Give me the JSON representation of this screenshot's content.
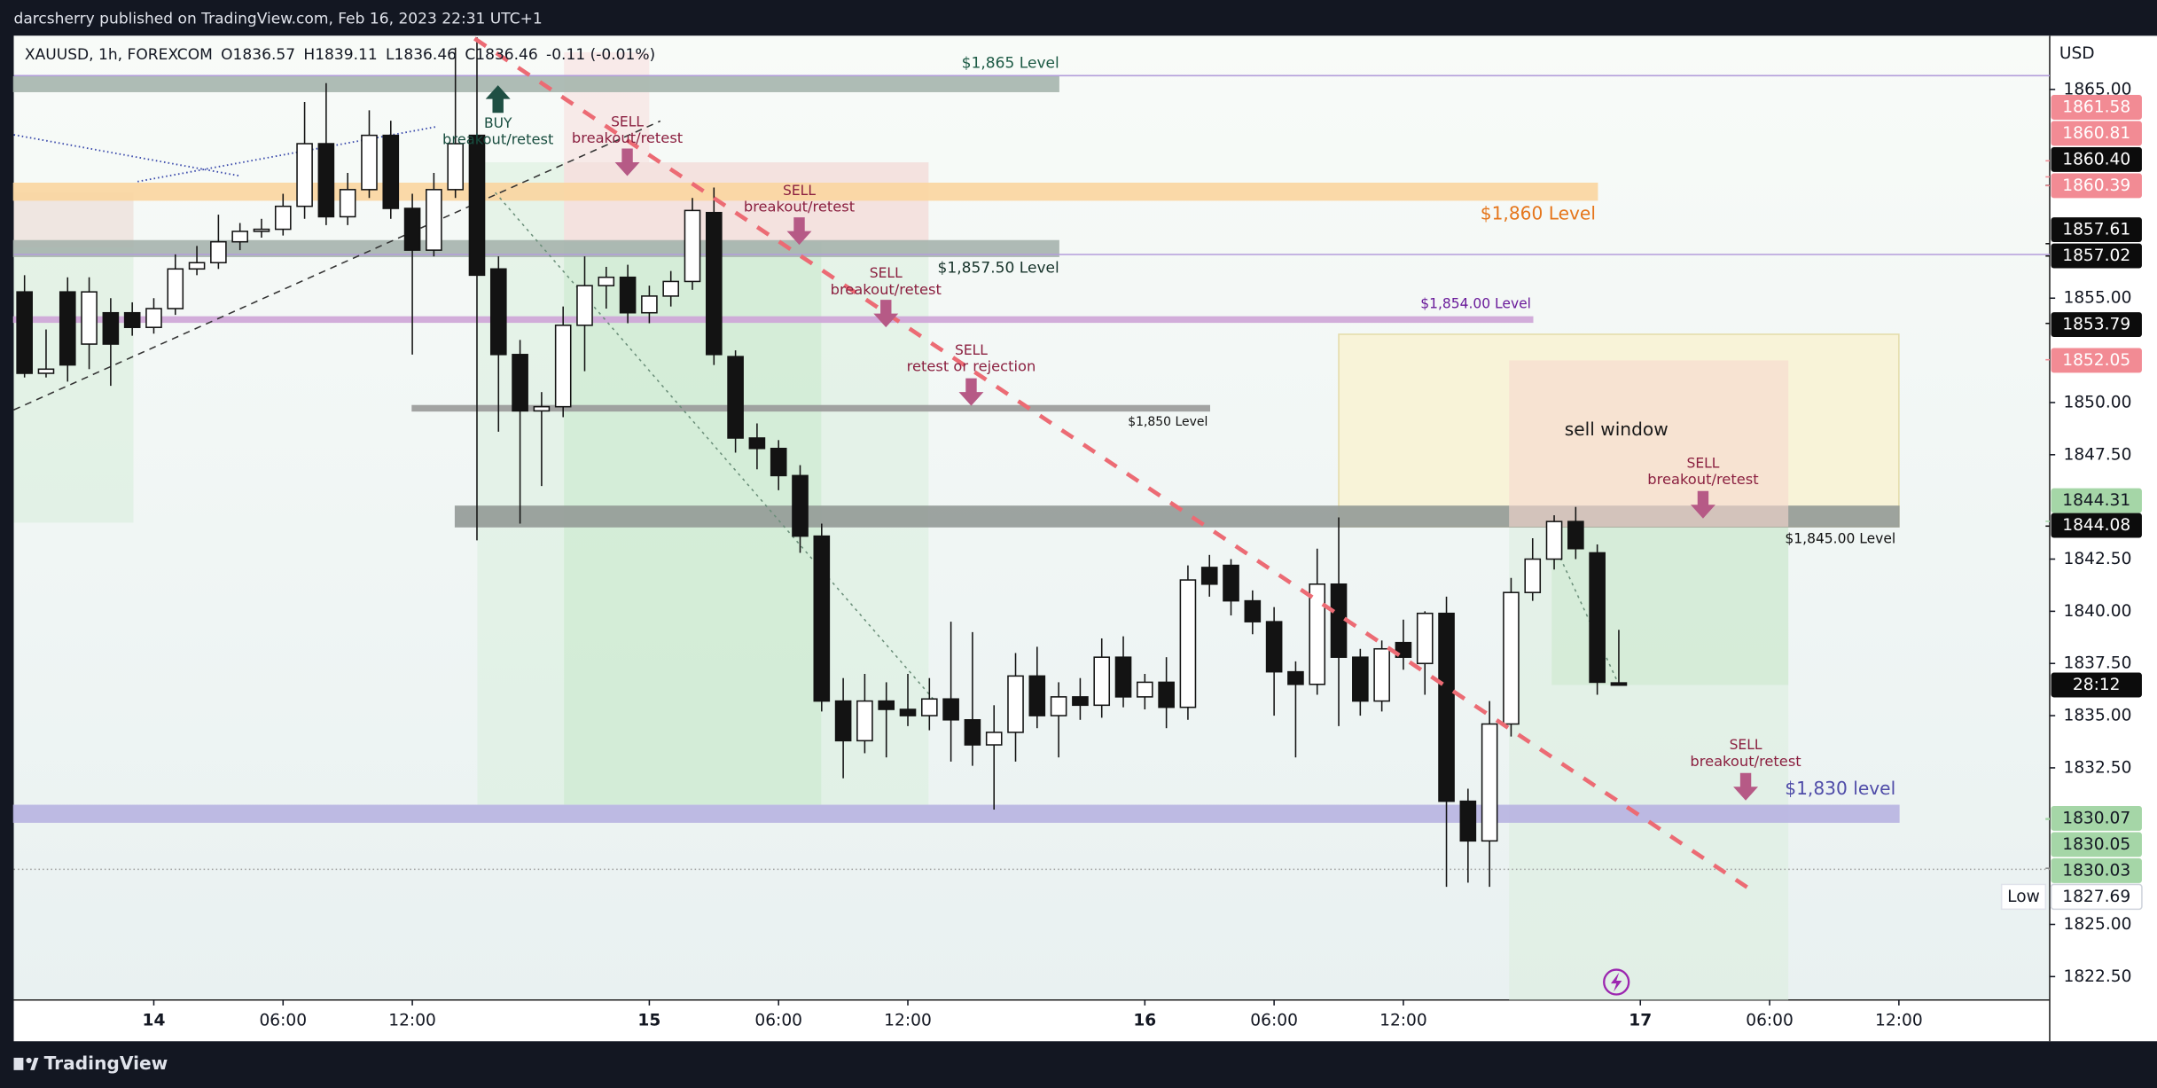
{
  "topbar": "darcsherry published on TradingView.com, Feb 16, 2023 22:31 UTC+1",
  "chart_data": {
    "type": "candlestick",
    "legend": [
      "XAUUSD, 1h, FOREXCOM",
      "O1836.57",
      "H1839.11",
      "L1836.46",
      "C1836.46",
      "-0.11 (-0.01%)"
    ],
    "currency": "USD",
    "open": [
      1855.3,
      1851.4,
      1855.3,
      1852.8,
      1854.3,
      1854.3,
      1853.6,
      1854.5,
      1856.4,
      1856.7,
      1857.7,
      1858.2,
      1858.3,
      1859.4,
      1862.4,
      1858.9,
      1860.2,
      1862.8,
      1859.3,
      1857.3,
      1860.2,
      1862.8,
      1856.4,
      1852.3,
      1849.6,
      1849.8,
      1853.7,
      1855.6,
      1856.0,
      1854.3,
      1855.1,
      1855.8,
      1859.1,
      1852.2,
      1848.3,
      1847.8,
      1846.5,
      1843.6,
      1835.7,
      1833.8,
      1835.7,
      1835.3,
      1835.0,
      1835.8,
      1834.8,
      1833.6,
      1834.2,
      1836.9,
      1835.0,
      1835.9,
      1835.5,
      1837.8,
      1835.9,
      1836.6,
      1835.4,
      1842.1,
      1842.2,
      1840.5,
      1839.5,
      1837.1,
      1836.5,
      1841.3,
      1837.8,
      1835.7,
      1838.5,
      1837.5,
      1839.9,
      1830.9,
      1829.0,
      1834.6,
      1840.9,
      1842.5,
      1844.3,
      1842.8,
      1836.57
    ],
    "high": [
      1856.1,
      1853.5,
      1856.0,
      1856.0,
      1855.0,
      1854.8,
      1855.0,
      1857.1,
      1857.5,
      1859.0,
      1858.6,
      1858.8,
      1860.0,
      1864.4,
      1865.3,
      1861.0,
      1864.0,
      1863.5,
      1860.0,
      1861.0,
      1867.0,
      1867.5,
      1857.0,
      1853.0,
      1850.5,
      1854.6,
      1857.0,
      1856.5,
      1856.6,
      1855.6,
      1856.3,
      1859.8,
      1860.3,
      1852.5,
      1849.0,
      1848.2,
      1847.0,
      1844.2,
      1836.8,
      1837.0,
      1836.6,
      1837.0,
      1836.8,
      1839.5,
      1839.0,
      1835.5,
      1838.0,
      1838.3,
      1836.6,
      1836.8,
      1838.7,
      1838.8,
      1837.0,
      1837.8,
      1842.2,
      1842.7,
      1842.5,
      1841.0,
      1840.2,
      1837.6,
      1843.0,
      1844.5,
      1838.2,
      1838.6,
      1839.6,
      1840.0,
      1840.7,
      1831.5,
      1835.7,
      1841.6,
      1843.5,
      1844.6,
      1845.0,
      1843.2,
      1839.11
    ],
    "low": [
      1851.2,
      1851.2,
      1851.0,
      1851.6,
      1850.8,
      1853.2,
      1853.3,
      1854.2,
      1856.1,
      1856.4,
      1857.3,
      1857.9,
      1858.0,
      1858.8,
      1858.5,
      1858.5,
      1859.8,
      1858.8,
      1852.3,
      1857.0,
      1859.8,
      1843.4,
      1848.6,
      1844.2,
      1846.0,
      1849.3,
      1851.5,
      1854.5,
      1853.8,
      1853.8,
      1854.6,
      1855.4,
      1851.8,
      1847.6,
      1846.8,
      1845.8,
      1842.8,
      1835.2,
      1832.0,
      1833.2,
      1833.0,
      1834.5,
      1834.3,
      1832.8,
      1832.6,
      1830.5,
      1832.8,
      1834.4,
      1833.0,
      1834.8,
      1834.9,
      1835.4,
      1835.3,
      1834.4,
      1834.8,
      1840.7,
      1839.8,
      1838.9,
      1835.0,
      1833.0,
      1836.0,
      1834.5,
      1835.0,
      1835.2,
      1837.2,
      1836.0,
      1826.8,
      1827.0,
      1826.8,
      1834.0,
      1840.5,
      1842.0,
      1842.5,
      1836.0,
      1836.46
    ],
    "close": [
      1851.4,
      1851.6,
      1851.8,
      1855.3,
      1852.8,
      1853.6,
      1854.5,
      1856.4,
      1856.7,
      1857.7,
      1858.2,
      1858.3,
      1859.4,
      1862.4,
      1858.9,
      1860.2,
      1862.8,
      1859.3,
      1857.3,
      1860.2,
      1862.4,
      1856.1,
      1852.3,
      1849.6,
      1849.8,
      1853.7,
      1855.6,
      1856.0,
      1854.3,
      1855.1,
      1855.8,
      1859.2,
      1852.3,
      1848.3,
      1847.8,
      1846.5,
      1843.6,
      1835.7,
      1833.8,
      1835.7,
      1835.3,
      1835.0,
      1835.8,
      1834.8,
      1833.6,
      1834.2,
      1836.9,
      1835.0,
      1835.9,
      1835.5,
      1837.8,
      1835.9,
      1836.6,
      1835.4,
      1841.5,
      1841.3,
      1840.5,
      1839.5,
      1837.1,
      1836.5,
      1841.3,
      1837.8,
      1835.7,
      1838.2,
      1837.8,
      1839.9,
      1830.9,
      1829.0,
      1834.6,
      1840.9,
      1842.5,
      1844.3,
      1843.0,
      1836.6,
      1836.46
    ],
    "up_color": "#ffffff",
    "down_color": "#131313",
    "xlim": [
      -0.5,
      94
    ],
    "xticks": [
      {
        "value": 6,
        "label": "14"
      },
      {
        "value": 12,
        "label": "06:00"
      },
      {
        "value": 18,
        "label": "12:00"
      },
      {
        "value": 29,
        "label": "15"
      },
      {
        "value": 35,
        "label": "06:00"
      },
      {
        "value": 41,
        "label": "12:00"
      },
      {
        "value": 52,
        "label": "16"
      },
      {
        "value": 58,
        "label": "06:00"
      },
      {
        "value": 64,
        "label": "12:00"
      },
      {
        "value": 75,
        "label": "17"
      },
      {
        "value": 81,
        "label": "06:00"
      },
      {
        "value": 87,
        "label": "12:00"
      }
    ],
    "ylim": [
      1821.38,
      1867.57
    ],
    "yticks": [
      {
        "value": 1865,
        "label": "1865.00"
      },
      {
        "value": 1855,
        "label": "1855.00"
      },
      {
        "value": 1850,
        "label": "1850.00"
      },
      {
        "value": 1847.5,
        "label": "1847.50"
      },
      {
        "value": 1842.5,
        "label": "1842.50"
      },
      {
        "value": 1840,
        "label": "1840.00"
      },
      {
        "value": 1837.5,
        "label": "1837.50"
      },
      {
        "value": 1835,
        "label": "1835.00"
      },
      {
        "value": 1832.5,
        "label": "1832.50"
      },
      {
        "value": 1825,
        "label": "1825.00"
      },
      {
        "value": 1822.5,
        "label": "1822.50"
      }
    ],
    "grid": false,
    "levels": [
      {
        "name": "$1,865 Level",
        "top": 1865.6,
        "bottom": 1864.9,
        "from": -0.5,
        "to": 48,
        "color": "#a7b6ae"
      },
      {
        "name": "$1,860 Level",
        "top": 1860.5,
        "bottom": 1859.7,
        "from": -0.5,
        "to": 73,
        "color": "#fbd6a0"
      },
      {
        "name": "$1,857.50 Level",
        "top": 1857.75,
        "bottom": 1857.0,
        "from": -0.5,
        "to": 48,
        "color": "#a7b4ae"
      },
      {
        "name": "$1,854.00 Level",
        "top": 1854.1,
        "bottom": 1853.85,
        "from": -0.5,
        "to": 70,
        "color": "#cfa5d8"
      },
      {
        "name": "$1,850 Level",
        "top": 1849.85,
        "bottom": 1849.6,
        "from": 18,
        "to": 55,
        "color": "#9a9a9a"
      },
      {
        "name": "$1,845.00 Level",
        "top": 1845.03,
        "bottom": 1844.05,
        "from": 20,
        "to": 87,
        "color": "#949b97"
      },
      {
        "name": "$1,830 level",
        "top": 1830.7,
        "bottom": 1829.9,
        "from": -0.5,
        "to": 87,
        "color": "#b8b4e2"
      }
    ],
    "sell_window": {
      "text": "sell window",
      "top": 1853.27,
      "bottom": 1844.05,
      "from": 61,
      "to": 87,
      "color": "#f8f3d8"
    },
    "signals": [
      [
        "BUY",
        "breakout/retest"
      ],
      [
        "SELL",
        "breakout/retest"
      ],
      [
        "SELL",
        "breakout/retest"
      ],
      [
        "SELL",
        "breakout/retest"
      ],
      [
        "SELL",
        "retest or rejection"
      ],
      [
        "SELL",
        "breakout/retest"
      ],
      [
        "SELL",
        "breakout/retest"
      ]
    ],
    "price_labels": [
      {
        "value": 1861.58,
        "label": "1861.58",
        "color": "#f28b94"
      },
      {
        "value": 1860.81,
        "label": "1860.81",
        "color": "#f28b94"
      },
      {
        "value": 1860.4,
        "label": "1860.40",
        "color": "#0c0c0c"
      },
      {
        "value": 1860.39,
        "label": "1860.39",
        "color": "#f28b94"
      },
      {
        "value": 1857.61,
        "label": "1857.61",
        "color": "#0c0c0c"
      },
      {
        "value": 1857.02,
        "label": "1857.02",
        "color": "#0c0c0c"
      },
      {
        "value": 1853.79,
        "label": "1853.79",
        "color": "#0c0c0c"
      },
      {
        "value": 1852.05,
        "label": "1852.05",
        "color": "#f28b94"
      },
      {
        "value": 1844.31,
        "label": "1844.31",
        "color": "#a5d6a7"
      },
      {
        "value": 1844.08,
        "label": "1844.08",
        "color": "#0c0c0c"
      },
      {
        "value": 1830.07,
        "label": "1830.07",
        "color": "#a5d6a7"
      },
      {
        "value": 1830.05,
        "label": "1830.05",
        "color": "#a5d6a7"
      },
      {
        "value": 1830.03,
        "label": "1830.03",
        "color": "#a5d6a7"
      },
      {
        "value": 1827.69,
        "label": "1827.69",
        "color": "#ffffff"
      }
    ],
    "countdown": "28:12",
    "low_label": "Low"
  },
  "footer": "TradingView"
}
